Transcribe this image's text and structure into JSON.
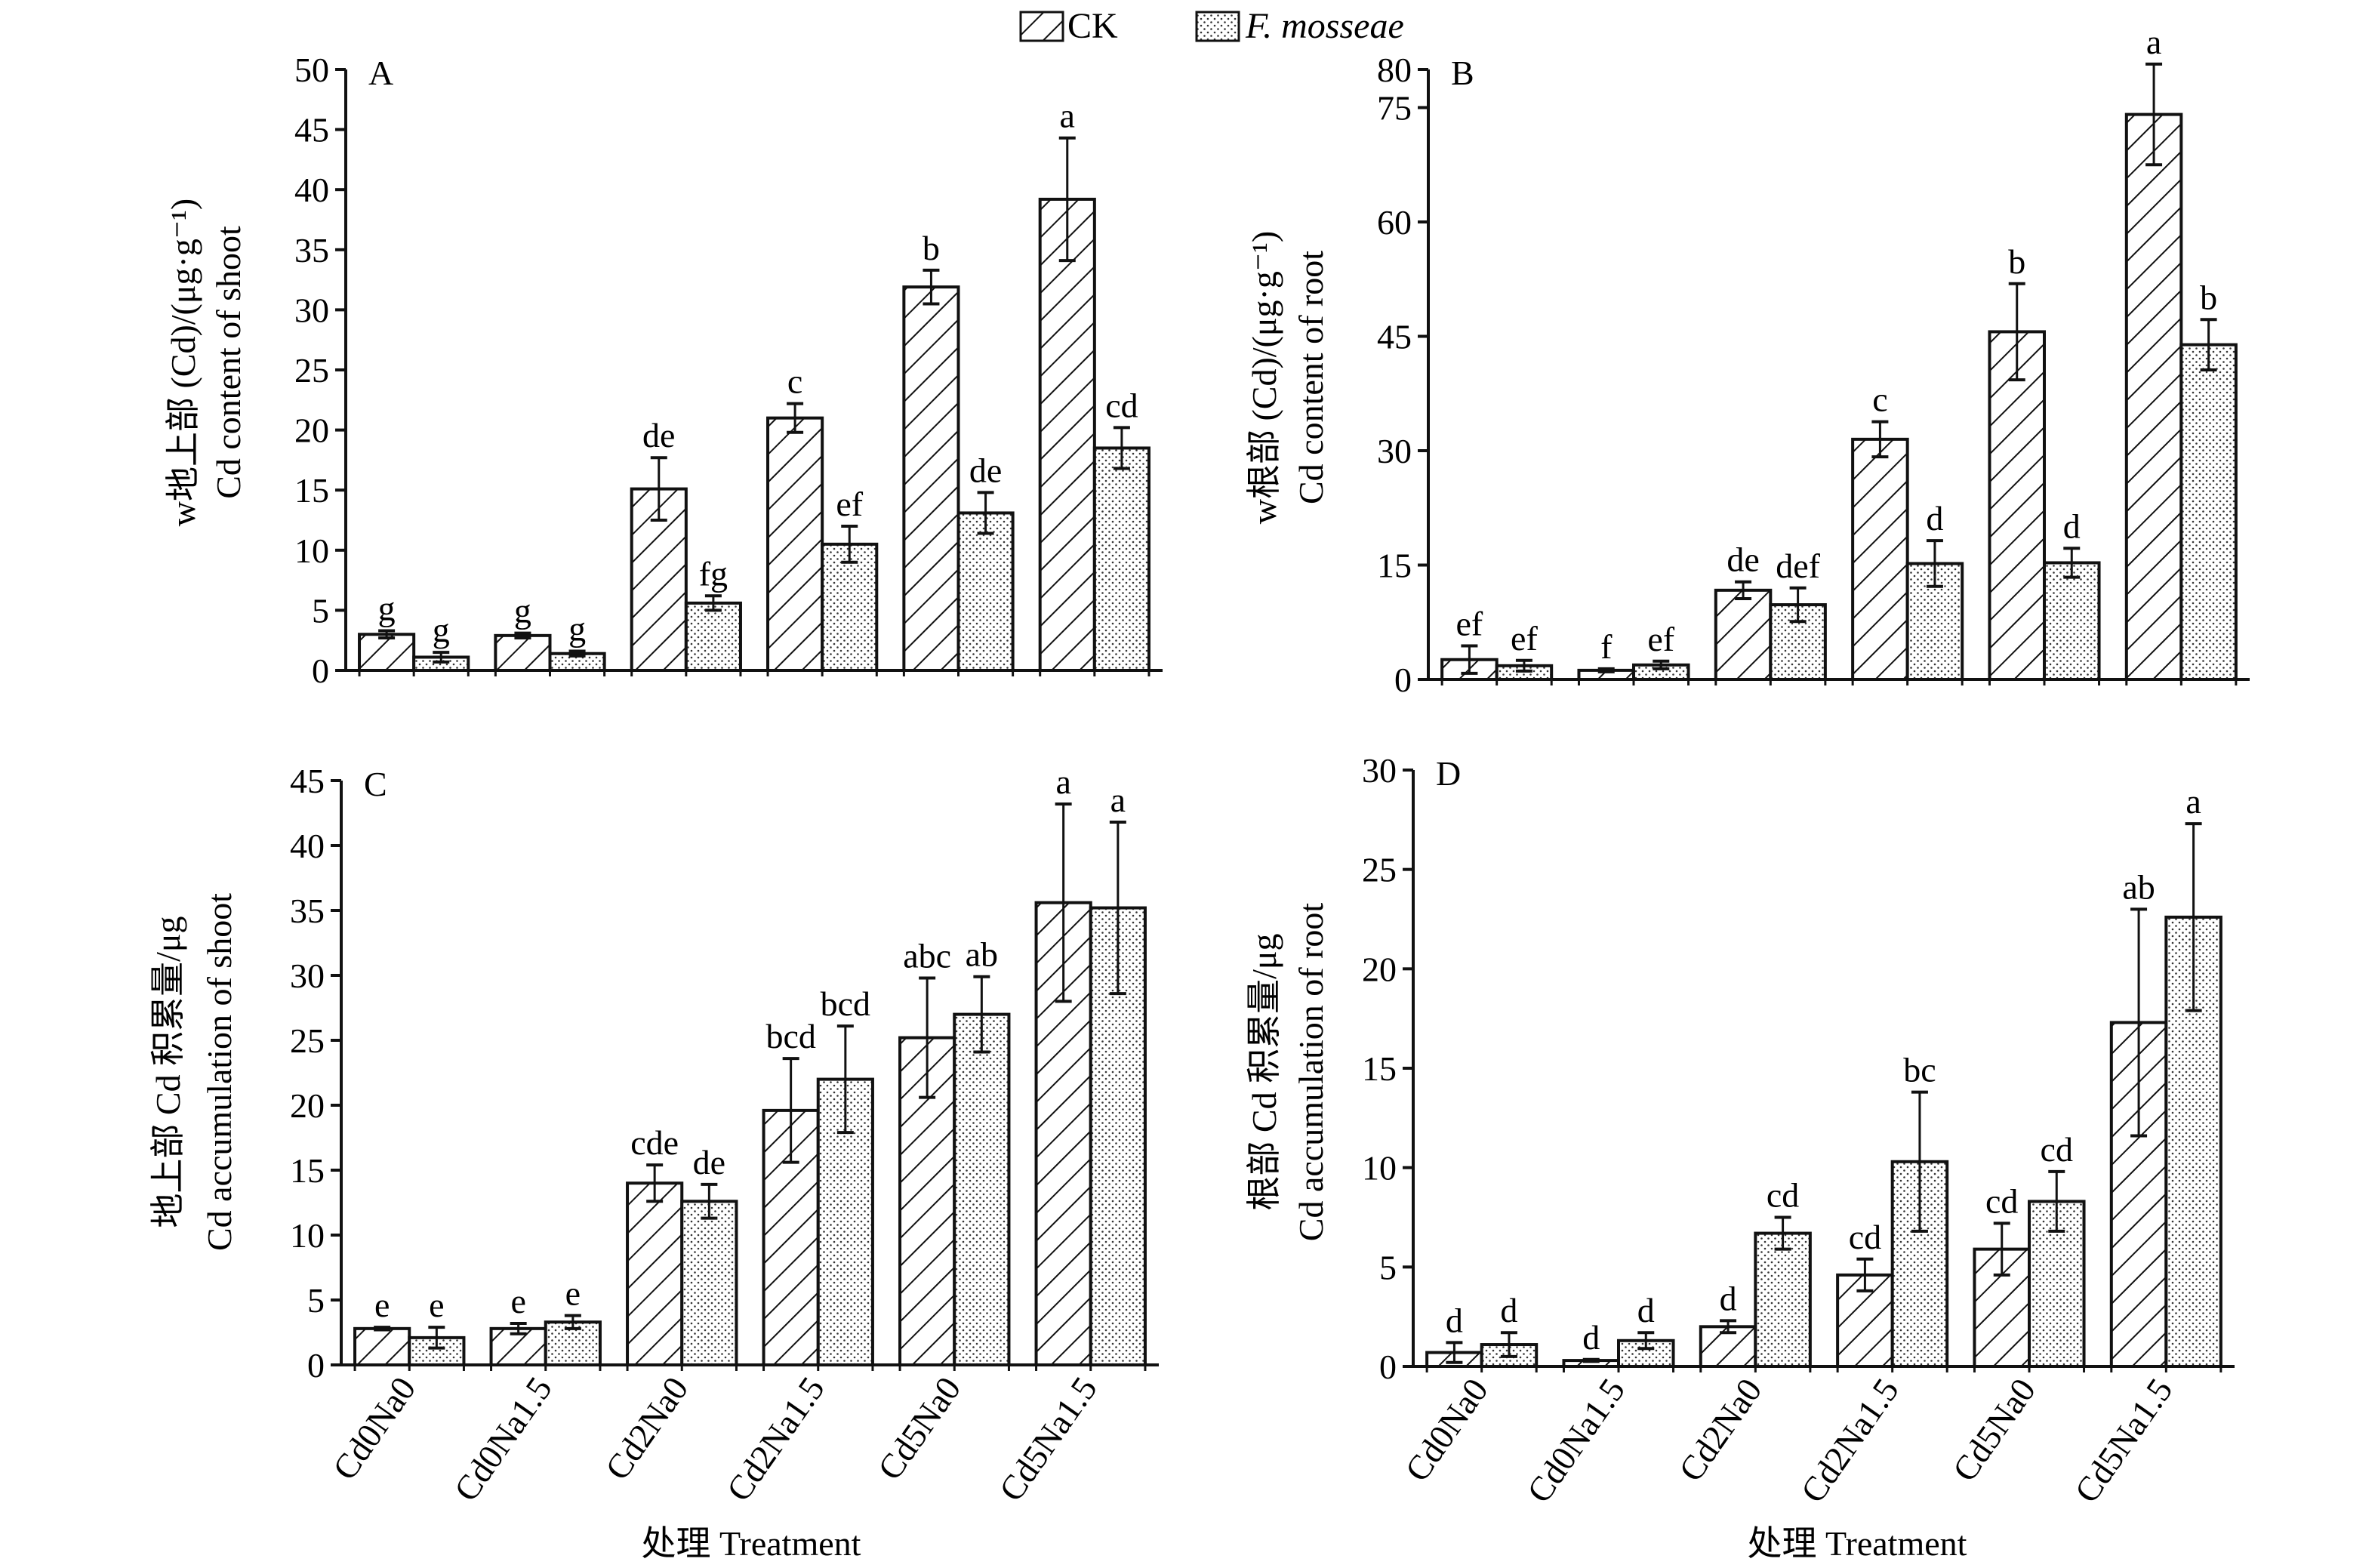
{
  "legend": {
    "items": [
      {
        "label": "CK",
        "pattern": "hatch",
        "italic": false
      },
      {
        "label": "F. mosseae",
        "pattern": "dots",
        "italic": true
      }
    ]
  },
  "x_title": "处理 Treatment",
  "chart_data": [
    {
      "type": "bar",
      "panel": "A",
      "title": "",
      "ylabel_line1": "w地上部 (Cd)/(μg·g⁻¹)",
      "ylabel_line2": "Cd content of shoot",
      "xlabel": "处理 Treatment",
      "categories": [
        "Cd0Na0",
        "Cd0Na1.5",
        "Cd2Na0",
        "Cd2Na1.5",
        "Cd5Na0",
        "Cd5Na1.5"
      ],
      "ylim": [
        0,
        50
      ],
      "yticks": [
        0,
        5,
        10,
        15,
        20,
        25,
        30,
        35,
        40,
        45,
        50
      ],
      "series": [
        {
          "name": "CK",
          "values": [
            3.0,
            2.9,
            15.1,
            21.0,
            31.9,
            39.2
          ],
          "errors": [
            0.3,
            0.2,
            2.6,
            1.2,
            1.4,
            5.1
          ],
          "letters": [
            "g",
            "g",
            "de",
            "c",
            "b",
            "a"
          ]
        },
        {
          "name": "F. mosseae",
          "values": [
            1.1,
            1.4,
            5.6,
            10.5,
            13.1,
            18.5
          ],
          "errors": [
            0.4,
            0.2,
            0.6,
            1.5,
            1.7,
            1.7
          ],
          "letters": [
            "g",
            "g",
            "fg",
            "ef",
            "de",
            "cd"
          ]
        }
      ],
      "show_xticklabels": false
    },
    {
      "type": "bar",
      "panel": "B",
      "title": "",
      "ylabel_line1": "w根部 (Cd)/(μg·g⁻¹)",
      "ylabel_line2": "Cd content of root",
      "xlabel": "处理 Treatment",
      "categories": [
        "Cd0Na0",
        "Cd0Na1.5",
        "Cd2Na0",
        "Cd2Na1.5",
        "Cd5Na0",
        "Cd5Na1.5"
      ],
      "ylim": [
        0,
        80
      ],
      "yticks": [
        0,
        15,
        30,
        45,
        60,
        75,
        80
      ],
      "series": [
        {
          "name": "CK",
          "values": [
            2.6,
            1.2,
            11.7,
            31.5,
            45.6,
            74.1
          ],
          "errors": [
            1.8,
            0.2,
            1.1,
            2.3,
            6.3,
            6.6
          ],
          "letters": [
            "ef",
            "f",
            "de",
            "c",
            "b",
            "a"
          ]
        },
        {
          "name": "F. mosseae",
          "values": [
            1.8,
            1.9,
            9.8,
            15.2,
            15.3,
            43.9
          ],
          "errors": [
            0.7,
            0.5,
            2.2,
            3.0,
            1.9,
            3.3
          ],
          "letters": [
            "ef",
            "ef",
            "def",
            "d",
            "d",
            "b"
          ]
        }
      ],
      "show_xticklabels": false
    },
    {
      "type": "bar",
      "panel": "C",
      "title": "",
      "ylabel_line1": "地上部 Cd 积累量/μg",
      "ylabel_line2": "Cd accumulation of shoot",
      "xlabel": "处理 Treatment",
      "categories": [
        "Cd0Na0",
        "Cd0Na1.5",
        "Cd2Na0",
        "Cd2Na1.5",
        "Cd5Na0",
        "Cd5Na1.5"
      ],
      "ylim": [
        0,
        45
      ],
      "yticks": [
        0,
        5,
        10,
        15,
        20,
        25,
        30,
        35,
        40,
        45
      ],
      "series": [
        {
          "name": "CK",
          "values": [
            2.8,
            2.8,
            14.0,
            19.6,
            25.2,
            35.6
          ],
          "errors": [
            0.1,
            0.4,
            1.4,
            4.0,
            4.6,
            7.6
          ],
          "letters": [
            "e",
            "e",
            "cde",
            "bcd",
            "abc",
            "a"
          ]
        },
        {
          "name": "F. mosseae",
          "values": [
            2.1,
            3.3,
            12.6,
            22.0,
            27.0,
            35.2
          ],
          "errors": [
            0.8,
            0.5,
            1.3,
            4.1,
            2.9,
            6.6
          ],
          "letters": [
            "e",
            "e",
            "de",
            "bcd",
            "ab",
            "a"
          ]
        }
      ],
      "show_xticklabels": true
    },
    {
      "type": "bar",
      "panel": "D",
      "title": "",
      "ylabel_line1": "根部 Cd 积累量/μg",
      "ylabel_line2": "Cd accumulation of root",
      "xlabel": "处理 Treatment",
      "categories": [
        "Cd0Na0",
        "Cd0Na1.5",
        "Cd2Na0",
        "Cd2Na1.5",
        "Cd5Na0",
        "Cd5Na1.5"
      ],
      "ylim": [
        0,
        30
      ],
      "yticks": [
        0,
        5,
        10,
        15,
        20,
        25,
        30
      ],
      "series": [
        {
          "name": "CK",
          "values": [
            0.7,
            0.3,
            2.0,
            4.6,
            5.9,
            17.3
          ],
          "errors": [
            0.5,
            0.05,
            0.3,
            0.8,
            1.3,
            5.7
          ],
          "letters": [
            "d",
            "d",
            "d",
            "cd",
            "cd",
            "ab"
          ]
        },
        {
          "name": "F. mosseae",
          "values": [
            1.1,
            1.3,
            6.7,
            10.3,
            8.3,
            22.6
          ],
          "errors": [
            0.6,
            0.4,
            0.8,
            3.5,
            1.5,
            4.7
          ],
          "letters": [
            "d",
            "d",
            "cd",
            "bc",
            "cd",
            "a"
          ]
        }
      ],
      "show_xticklabels": true
    }
  ]
}
